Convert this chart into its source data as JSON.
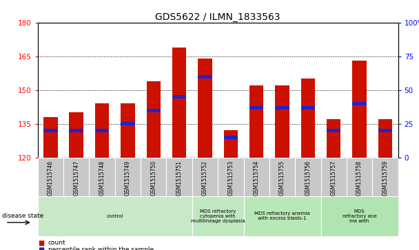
{
  "title": "GDS5622 / ILMN_1833563",
  "samples": [
    "GSM1515746",
    "GSM1515747",
    "GSM1515748",
    "GSM1515749",
    "GSM1515750",
    "GSM1515751",
    "GSM1515752",
    "GSM1515753",
    "GSM1515754",
    "GSM1515755",
    "GSM1515756",
    "GSM1515757",
    "GSM1515758",
    "GSM1515759"
  ],
  "counts": [
    138,
    140,
    144,
    144,
    154,
    169,
    164,
    132,
    152,
    152,
    155,
    137,
    163,
    137
  ],
  "percentile_ranks": [
    20,
    20,
    20,
    25,
    35,
    45,
    60,
    15,
    37,
    37,
    37,
    20,
    40,
    20
  ],
  "ylim_left": [
    120,
    180
  ],
  "ylim_right": [
    0,
    100
  ],
  "yticks_left": [
    120,
    135,
    150,
    165,
    180
  ],
  "yticks_right": [
    0,
    25,
    50,
    75,
    100
  ],
  "bar_color": "#cc1100",
  "marker_color": "#2222cc",
  "background_color": "#ffffff",
  "bar_bg_color": "#c8c8c8",
  "disease_groups": [
    {
      "label": "control",
      "start": 0,
      "end": 6,
      "color": "#c8e8c8"
    },
    {
      "label": "MDS refractory\ncytopenia with\nmultilineage dysplasia",
      "start": 6,
      "end": 8,
      "color": "#c0e8c0"
    },
    {
      "label": "MDS refractory anemia\nwith excess blasts-1",
      "start": 8,
      "end": 11,
      "color": "#b8e8b8"
    },
    {
      "label": "MDS\nrefractory ane\nma with",
      "start": 11,
      "end": 14,
      "color": "#b0e4b0"
    }
  ],
  "legend_items": [
    {
      "label": "count",
      "color": "#cc1100"
    },
    {
      "label": "percentile rank within the sample",
      "color": "#2222cc"
    }
  ],
  "disease_state_label": "disease state"
}
